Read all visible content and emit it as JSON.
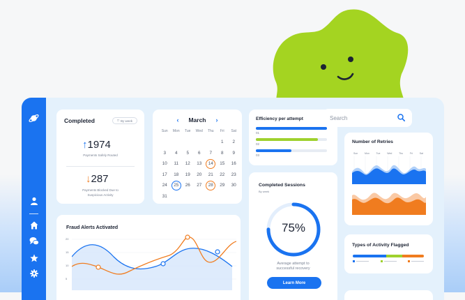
{
  "sidebar": {
    "icons": [
      "planet-icon",
      "user-icon",
      "home-icon",
      "chat-icon",
      "star-icon",
      "gear-icon"
    ]
  },
  "completed": {
    "title": "Completed",
    "filter": "By week",
    "routed_value": "1974",
    "routed_label": "Payments Safely Routed",
    "blocked_value": "287",
    "blocked_label_1": "Payments Blocked Due to",
    "blocked_label_2": "Suspicious Activity"
  },
  "calendar": {
    "month": "March",
    "weekdays": [
      "Sun",
      "Mon",
      "Tue",
      "Wed",
      "Thu",
      "Fri",
      "Sat"
    ],
    "days": [
      "",
      "",
      "",
      "",
      "",
      "1",
      "2",
      "3",
      "4",
      "5",
      "6",
      "7",
      "8",
      "9",
      "10",
      "11",
      "12",
      "13",
      "14",
      "15",
      "16",
      "17",
      "18",
      "19",
      "20",
      "21",
      "22",
      "23",
      "24",
      "25",
      "26",
      "27",
      "28",
      "29",
      "30",
      "31"
    ],
    "highlight_orange": [
      "14",
      "28"
    ],
    "highlight_blue": [
      "25"
    ]
  },
  "efficiency": {
    "title": "Efficiency per attempt",
    "bars": [
      {
        "label": "01",
        "value": 1.0,
        "color": "#1a73f0"
      },
      {
        "label": "02",
        "value": 0.87,
        "color": "#9fd12e"
      },
      {
        "label": "03",
        "value": 0.5,
        "color": "#1a73f0"
      }
    ]
  },
  "sessions": {
    "title": "Completed Sessions",
    "subtitle": "By week",
    "percent": "75%",
    "progress": 0.75,
    "caption_1": "Average attempt to",
    "caption_2": "successful recovery",
    "button": "Learn More"
  },
  "search": {
    "placeholder": "Search"
  },
  "retries": {
    "title": "Number of Retries",
    "top_days": [
      "Sun",
      "Mon",
      "Tue",
      "Wed",
      "Thu",
      "Fri",
      "Sat"
    ]
  },
  "fraud": {
    "title": "Fraud Alerts Activated",
    "y_ticks": [
      "20",
      "15",
      "10",
      "5"
    ]
  },
  "activity": {
    "title": "Types of Activity Flagged",
    "segments": [
      {
        "color": "#1a73f0",
        "value": 0.47
      },
      {
        "color": "#9fd12e",
        "value": 0.23
      },
      {
        "color": "#f07c1f",
        "value": 0.3
      }
    ]
  },
  "colors": {
    "accent": "#1a73f0",
    "orange": "#f07c1f",
    "green": "#9fd12e"
  }
}
